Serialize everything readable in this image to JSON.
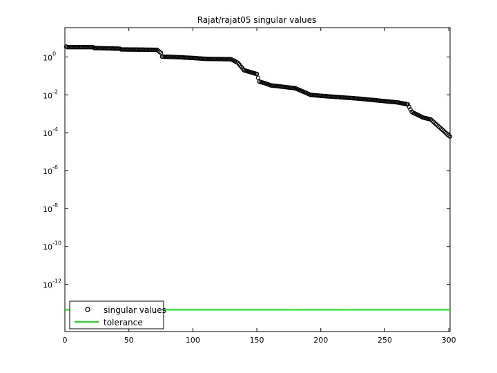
{
  "chart_data": {
    "type": "scatter",
    "title": "Rajat/rajat05 singular values",
    "xlabel": "",
    "ylabel": "",
    "xlim": [
      0,
      301
    ],
    "ylog_exp_range": [
      -14.5,
      1.55
    ],
    "y_scale": "log",
    "grid": false,
    "legend_position": "bottom-left",
    "x_ticks": [
      0,
      50,
      100,
      150,
      200,
      250,
      300
    ],
    "x_tick_labels": [
      "0",
      "50",
      "100",
      "150",
      "200",
      "250",
      "300"
    ],
    "y_ticks": [
      {
        "exp": 0,
        "base": "10",
        "sup": "0"
      },
      {
        "exp": -2,
        "base": "10",
        "sup": "-2"
      },
      {
        "exp": -4,
        "base": "10",
        "sup": "-4"
      },
      {
        "exp": -6,
        "base": "10",
        "sup": "-6"
      },
      {
        "exp": -8,
        "base": "10",
        "sup": "-8"
      },
      {
        "exp": -10,
        "base": "10",
        "sup": "-10"
      },
      {
        "exp": -12,
        "base": "10",
        "sup": "-12"
      }
    ],
    "series": [
      {
        "name": "singular values",
        "marker": "circle",
        "color": "#000000",
        "n_points": 301,
        "log10_breakpoints": [
          [
            1,
            0.55
          ],
          [
            2,
            0.52
          ],
          [
            22,
            0.52
          ],
          [
            23,
            0.47
          ],
          [
            43,
            0.44
          ],
          [
            44,
            0.4
          ],
          [
            72,
            0.38
          ],
          [
            75,
            0.22
          ],
          [
            76,
            0.02
          ],
          [
            85,
            0.0
          ],
          [
            100,
            -0.05
          ],
          [
            110,
            -0.1
          ],
          [
            130,
            -0.12
          ],
          [
            135,
            -0.3
          ],
          [
            137,
            -0.45
          ],
          [
            140,
            -0.7
          ],
          [
            150,
            -0.9
          ],
          [
            152,
            -1.3
          ],
          [
            157,
            -1.4
          ],
          [
            161,
            -1.5
          ],
          [
            180,
            -1.65
          ],
          [
            187,
            -1.85
          ],
          [
            192,
            -2.0
          ],
          [
            200,
            -2.05
          ],
          [
            230,
            -2.2
          ],
          [
            260,
            -2.4
          ],
          [
            268,
            -2.5
          ],
          [
            271,
            -2.9
          ],
          [
            280,
            -3.2
          ],
          [
            286,
            -3.3
          ],
          [
            290,
            -3.55
          ],
          [
            296,
            -3.9
          ],
          [
            299,
            -4.1
          ],
          [
            301,
            -4.2
          ]
        ]
      },
      {
        "name": "tolerance",
        "marker": "line",
        "color": "#00ee00",
        "log10_value": -13.35
      }
    ]
  }
}
